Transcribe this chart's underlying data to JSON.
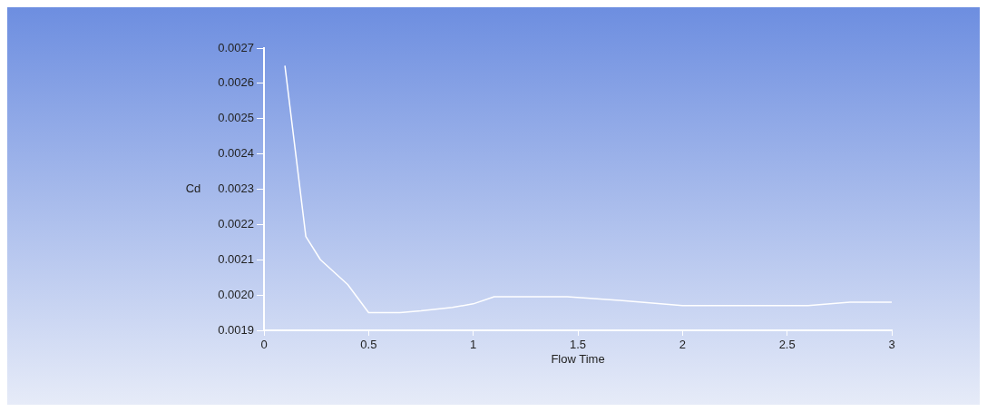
{
  "chart_data": {
    "type": "line",
    "xlabel": "Flow Time",
    "ylabel": "Cd",
    "x": [
      0.1,
      0.2,
      0.27,
      0.4,
      0.5,
      0.65,
      0.75,
      0.9,
      1.0,
      1.1,
      1.25,
      1.45,
      1.7,
      2.0,
      2.3,
      2.6,
      2.8,
      3.0
    ],
    "series": [
      {
        "color": "#ffffff",
        "values": [
          0.00265,
          0.002166,
          0.0021,
          0.00203,
          0.00195,
          0.00195,
          0.001955,
          0.001965,
          0.001975,
          0.001995,
          0.001995,
          0.001995,
          0.001985,
          0.00197,
          0.00197,
          0.00197,
          0.00198,
          0.00198
        ]
      }
    ],
    "xlim": [
      0,
      3
    ],
    "xticks": [
      0,
      0.5,
      1,
      1.5,
      2,
      2.5,
      3
    ],
    "ylim": [
      0.0019,
      0.0027
    ],
    "yticks": [
      {
        "value": 0.0019,
        "label": "0.0019"
      },
      {
        "value": 0.002,
        "label": "0.0020"
      },
      {
        "value": 0.0021,
        "label": "0.0021"
      },
      {
        "value": 0.0022,
        "label": "0.0022"
      },
      {
        "value": 0.0023,
        "label": "0.0023"
      },
      {
        "value": 0.0024,
        "label": "0.0024"
      },
      {
        "value": 0.0025,
        "label": "0.0025"
      },
      {
        "value": 0.0026,
        "label": "0.0026"
      },
      {
        "value": 0.0027,
        "label": "0.0027"
      }
    ],
    "grid": false,
    "legend": false,
    "marker": "none",
    "line_style": "solid"
  }
}
